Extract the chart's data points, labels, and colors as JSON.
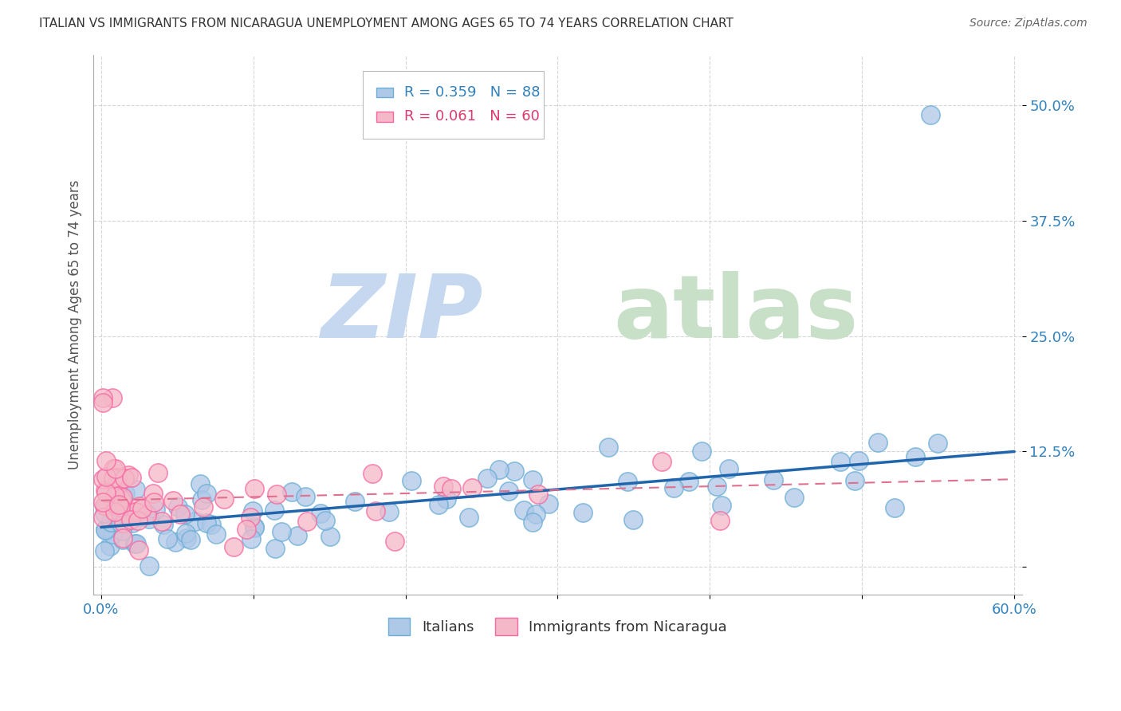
{
  "title": "ITALIAN VS IMMIGRANTS FROM NICARAGUA UNEMPLOYMENT AMONG AGES 65 TO 74 YEARS CORRELATION CHART",
  "source": "Source: ZipAtlas.com",
  "ylabel": "Unemployment Among Ages 65 to 74 years",
  "xlim": [
    -0.005,
    0.605
  ],
  "ylim": [
    -0.03,
    0.555
  ],
  "xtick_positions": [
    0.0,
    0.1,
    0.2,
    0.3,
    0.4,
    0.5,
    0.6
  ],
  "xticklabels": [
    "0.0%",
    "",
    "",
    "",
    "",
    "",
    "60.0%"
  ],
  "ytick_positions": [
    0.0,
    0.125,
    0.25,
    0.375,
    0.5
  ],
  "ytick_labels": [
    "",
    "12.5%",
    "25.0%",
    "37.5%",
    "50.0%"
  ],
  "legend1_r": "0.359",
  "legend1_n": "88",
  "legend2_r": "0.061",
  "legend2_n": "60",
  "legend_label1": "Italians",
  "legend_label2": "Immigrants from Nicaragua",
  "blue_scatter_face": "#aec8e8",
  "blue_scatter_edge": "#6baed6",
  "pink_scatter_face": "#f4b8c8",
  "pink_scatter_edge": "#f768a1",
  "blue_line_color": "#2166ac",
  "pink_line_color": "#e07090",
  "blue_legend_fill": "#aec8e8",
  "pink_legend_fill": "#f4b8c8",
  "blue_text_color": "#3182bd",
  "pink_text_color": "#de3a6e",
  "watermark_zip_color": "#c5d8ef",
  "watermark_atlas_color": "#c8dfc8",
  "background_color": "#ffffff",
  "grid_color": "#cccccc",
  "title_color": "#333333",
  "axis_label_color": "#555555",
  "tick_label_color": "#3182bd",
  "it_line_x0": 0.0,
  "it_line_y0": 0.043,
  "it_line_x1": 0.6,
  "it_line_y1": 0.125,
  "ni_line_x0": 0.0,
  "ni_line_y0": 0.072,
  "ni_line_x1": 0.6,
  "ni_line_y1": 0.095
}
